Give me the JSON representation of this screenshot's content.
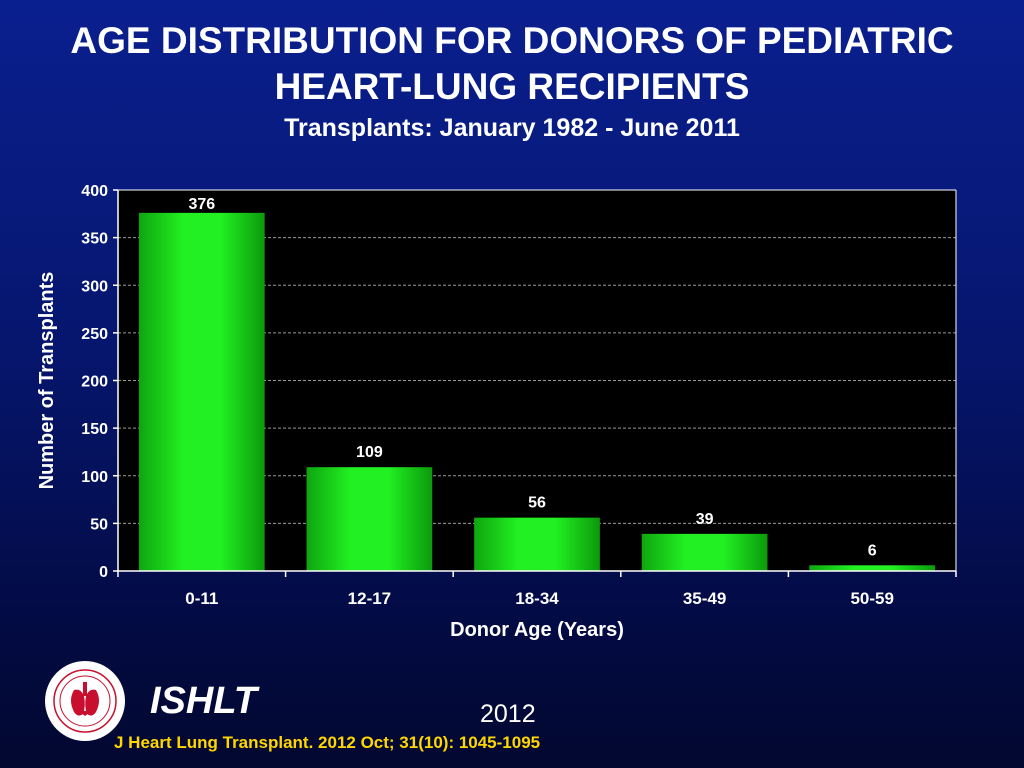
{
  "header": {
    "title_line1": "AGE DISTRIBUTION FOR DONORS OF PEDIATRIC",
    "title_line2": "HEART-LUNG RECIPIENTS",
    "subtitle": "Transplants: January 1982 - June 2011"
  },
  "chart_data": {
    "type": "bar",
    "title": "AGE DISTRIBUTION FOR DONORS OF PEDIATRIC HEART-LUNG RECIPIENTS",
    "subtitle": "Transplants: January 1982 - June 2011",
    "categories": [
      "0-11",
      "12-17",
      "18-34",
      "35-49",
      "50-59"
    ],
    "values": [
      376,
      109,
      56,
      39,
      6
    ],
    "data_labels": [
      "376",
      "109",
      "56",
      "39",
      "6"
    ],
    "xlabel": "Donor Age (Years)",
    "ylabel": "Number of Transplants",
    "ylim": [
      0,
      400
    ],
    "yticks": [
      0,
      50,
      100,
      150,
      200,
      250,
      300,
      350,
      400
    ],
    "grid": true,
    "legend": "none",
    "colors": {
      "bar": "#1ee61e",
      "plot_background": "#000000",
      "gridline": "#9a9a9a",
      "text": "#ffffff"
    }
  },
  "footer": {
    "organization": "ISHLT",
    "year": "2012",
    "citation": "J Heart Lung Transplant.  2012 Oct; 31(10): 1045-1095",
    "citation_color": "#ffd700"
  }
}
